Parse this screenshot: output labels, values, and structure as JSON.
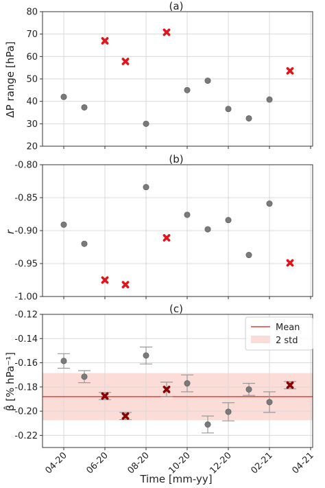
{
  "colors": {
    "normal_marker": "#7a7a7a",
    "outlier_marker": "#e0151b",
    "outlier_dark": "#8b0000",
    "mean_line": "#e0443a",
    "std_band": "#fcdcd7",
    "errorbar": "#999999",
    "grid": "#d9d9d9"
  },
  "chart_data": [
    {
      "type": "scatter",
      "panel_title": "(a)",
      "ylabel": "ΔP range [hPa]",
      "ylim": [
        20,
        80
      ],
      "yticks": [
        20,
        30,
        40,
        50,
        60,
        70,
        80
      ],
      "ytick_labels": [
        "20",
        "30",
        "40",
        "50",
        "60",
        "70",
        "80"
      ],
      "grid": true,
      "x": [
        "2020-04",
        "2020-05",
        "2020-06",
        "2020-07",
        "2020-08",
        "2020-09",
        "2020-10",
        "2020-11",
        "2020-12",
        "2021-01",
        "2021-02",
        "2021-03"
      ],
      "values": [
        42.0,
        37.3,
        67.0,
        57.8,
        30.0,
        70.8,
        45.0,
        49.2,
        36.6,
        32.4,
        40.8,
        53.6
      ],
      "outlier": [
        false,
        false,
        true,
        true,
        false,
        true,
        false,
        false,
        false,
        false,
        false,
        true
      ]
    },
    {
      "type": "scatter",
      "panel_title": "(b)",
      "ylabel": "r",
      "ylim": [
        -1.0,
        -0.8
      ],
      "yticks": [
        -1.0,
        -0.95,
        -0.9,
        -0.85,
        -0.8
      ],
      "ytick_labels": [
        "-1.00",
        "-0.95",
        "-0.90",
        "-0.85",
        "-0.80"
      ],
      "grid": true,
      "x": [
        "2020-04",
        "2020-05",
        "2020-06",
        "2020-07",
        "2020-08",
        "2020-09",
        "2020-10",
        "2020-11",
        "2020-12",
        "2021-01",
        "2021-02",
        "2021-03"
      ],
      "values": [
        -0.891,
        -0.92,
        -0.975,
        -0.982,
        -0.834,
        -0.911,
        -0.876,
        -0.898,
        -0.884,
        -0.937,
        -0.859,
        -0.949
      ],
      "outlier": [
        false,
        false,
        true,
        true,
        false,
        true,
        false,
        false,
        false,
        false,
        false,
        true
      ]
    },
    {
      "type": "scatter",
      "panel_title": "(c)",
      "ylabel": "β̂ [% hPa⁻¹]",
      "xlabel": "Time [mm-yy]",
      "ylim": [
        -0.23,
        -0.12
      ],
      "yticks": [
        -0.22,
        -0.2,
        -0.18,
        -0.16,
        -0.14,
        -0.12
      ],
      "ytick_labels": [
        "-0.22",
        "-0.20",
        "-0.18",
        "-0.16",
        "-0.14",
        "-0.12"
      ],
      "xticks": [
        "2020-04",
        "2020-06",
        "2020-08",
        "2020-10",
        "2020-12",
        "2021-02",
        "2021-04"
      ],
      "xtick_labels": [
        "04-20",
        "06-20",
        "08-20",
        "10-20",
        "12-20",
        "02-21",
        "04-21"
      ],
      "grid": true,
      "x": [
        "2020-04",
        "2020-05",
        "2020-06",
        "2020-07",
        "2020-08",
        "2020-09",
        "2020-10",
        "2020-11",
        "2020-12",
        "2021-01",
        "2021-02",
        "2021-03"
      ],
      "values": [
        -0.1585,
        -0.1715,
        -0.1875,
        -0.204,
        -0.154,
        -0.182,
        -0.177,
        -0.211,
        -0.2005,
        -0.182,
        -0.1925,
        -0.1785
      ],
      "errors": [
        0.006,
        0.005,
        0.003,
        0.003,
        0.007,
        0.006,
        0.007,
        0.007,
        0.0075,
        0.005,
        0.0085,
        0.003
      ],
      "outlier": [
        false,
        false,
        true,
        true,
        false,
        true,
        false,
        false,
        false,
        false,
        false,
        true
      ],
      "mean": -0.188,
      "std_band": [
        -0.2075,
        -0.1685
      ],
      "legend": {
        "position": "upper right",
        "entries": [
          "Mean",
          "2 std"
        ]
      }
    }
  ]
}
